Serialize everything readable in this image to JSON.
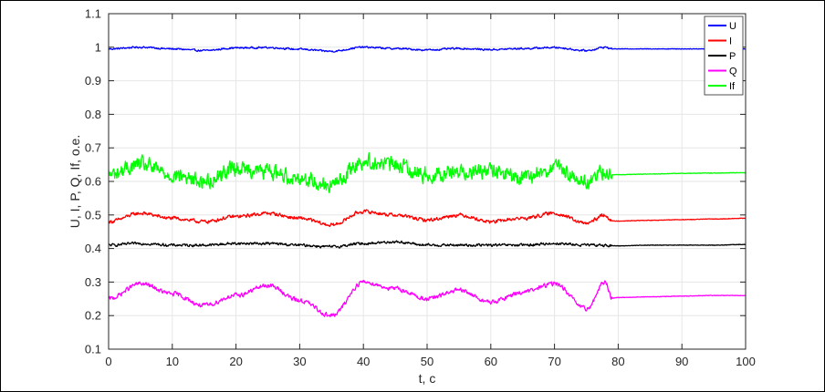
{
  "chart_data": {
    "type": "line",
    "xlabel": "t, c",
    "ylabel": "U, I, P, Q, If, o.e.",
    "xlim": [
      0,
      100
    ],
    "ylim": [
      0.1,
      1.1
    ],
    "xticks": [
      "0",
      "10",
      "20",
      "30",
      "40",
      "50",
      "60",
      "70",
      "80",
      "90",
      "100"
    ],
    "yticks": [
      "0.1",
      "0.2",
      "0.3",
      "0.4",
      "0.5",
      "0.6",
      "0.7",
      "0.8",
      "0.9",
      "1",
      "1.1"
    ],
    "grid": true,
    "legend_position": "top-right",
    "x": [
      0,
      5,
      10,
      15,
      20,
      25,
      30,
      35,
      40,
      45,
      50,
      55,
      60,
      65,
      70,
      75,
      78,
      79,
      80,
      85,
      90,
      95,
      100
    ],
    "series": [
      {
        "name": "U",
        "color": "#0000ff",
        "noise": 0.004,
        "values": [
          0.995,
          1.0,
          0.995,
          0.99,
          0.998,
          0.999,
          0.994,
          0.988,
          1.0,
          0.996,
          0.992,
          0.996,
          0.993,
          0.996,
          0.999,
          0.99,
          1.0,
          0.995,
          0.995,
          0.995,
          0.995,
          0.995,
          0.995
        ]
      },
      {
        "name": "I",
        "color": "#ff0000",
        "noise": 0.008,
        "values": [
          0.48,
          0.505,
          0.49,
          0.48,
          0.495,
          0.505,
          0.49,
          0.47,
          0.51,
          0.5,
          0.485,
          0.5,
          0.48,
          0.49,
          0.505,
          0.475,
          0.5,
          0.482,
          0.482,
          0.484,
          0.486,
          0.488,
          0.49
        ]
      },
      {
        "name": "P",
        "color": "#000000",
        "noise": 0.006,
        "values": [
          0.41,
          0.415,
          0.41,
          0.41,
          0.415,
          0.415,
          0.41,
          0.405,
          0.415,
          0.42,
          0.41,
          0.41,
          0.41,
          0.41,
          0.415,
          0.41,
          0.41,
          0.408,
          0.408,
          0.41,
          0.41,
          0.41,
          0.412
        ]
      },
      {
        "name": "Q",
        "color": "#ff00ff",
        "noise": 0.01,
        "values": [
          0.25,
          0.295,
          0.265,
          0.23,
          0.26,
          0.29,
          0.245,
          0.2,
          0.3,
          0.28,
          0.25,
          0.275,
          0.24,
          0.27,
          0.295,
          0.22,
          0.3,
          0.252,
          0.254,
          0.256,
          0.258,
          0.26,
          0.26
        ]
      },
      {
        "name": "If",
        "color": "#00ff00",
        "noise": 0.035,
        "values": [
          0.62,
          0.65,
          0.62,
          0.6,
          0.64,
          0.63,
          0.61,
          0.59,
          0.66,
          0.65,
          0.62,
          0.63,
          0.63,
          0.61,
          0.64,
          0.6,
          0.63,
          0.62,
          0.62,
          0.622,
          0.624,
          0.625,
          0.626
        ]
      }
    ]
  }
}
